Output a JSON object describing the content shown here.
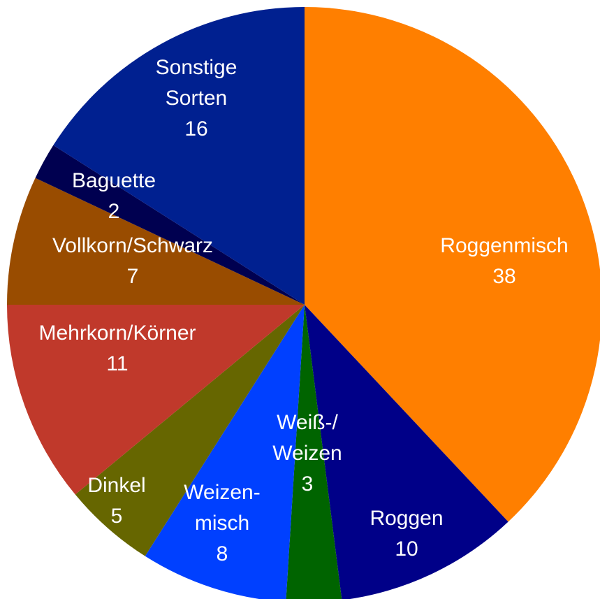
{
  "chart_data": {
    "type": "pie",
    "categories": [
      "Roggenmisch",
      "Roggen",
      "Weiß-/\nWeizen",
      "Weizen-\nmisch",
      "Dinkel",
      "Mehrkorn/Körner",
      "Vollkorn/Schwarz",
      "Baguette",
      "Sonstige\nSorten"
    ],
    "values": [
      38,
      10,
      3,
      8,
      5,
      11,
      7,
      2,
      16
    ],
    "colors": [
      "#ff7f00",
      "#000088",
      "#006400",
      "#0040ff",
      "#666600",
      "#c0392b",
      "#994c00",
      "#000050",
      "#002090"
    ]
  }
}
